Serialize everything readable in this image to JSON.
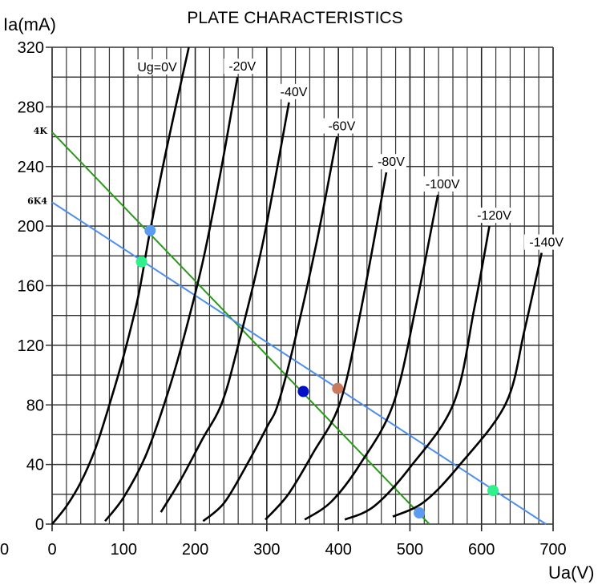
{
  "chart_data": {
    "type": "line",
    "title": "PLATE CHARACTERISTICS",
    "xlabel": "Ua(V)",
    "ylabel": "Ia(mA)",
    "xlim": [
      0,
      700
    ],
    "ylim": [
      0,
      320
    ],
    "x_ticks": [
      0,
      100,
      200,
      300,
      400,
      500,
      600,
      700
    ],
    "y_ticks": [
      0,
      40,
      80,
      120,
      160,
      200,
      240,
      280,
      320
    ],
    "x_minor_step": 20,
    "y_minor_step": 20,
    "grid": true,
    "extra_labels": [
      {
        "text": "0",
        "position": "bottom-left-outside"
      }
    ],
    "series": [
      {
        "name": "Ug=0V",
        "label": "Ug=0V",
        "color": "#000000",
        "points": [
          [
            0,
            0
          ],
          [
            20,
            12
          ],
          [
            40,
            28
          ],
          [
            60,
            50
          ],
          [
            80,
            80
          ],
          [
            100,
            113
          ],
          [
            120,
            152
          ],
          [
            137,
            197
          ],
          [
            160,
            252
          ],
          [
            191,
            320
          ]
        ]
      },
      {
        "name": "-20V",
        "label": "-20V",
        "color": "#000000",
        "points": [
          [
            74,
            2
          ],
          [
            100,
            18
          ],
          [
            130,
            45
          ],
          [
            157,
            81
          ],
          [
            180,
            118
          ],
          [
            210,
            175
          ],
          [
            235,
            235
          ],
          [
            259,
            300
          ]
        ]
      },
      {
        "name": "-40V",
        "label": "-40V",
        "color": "#000000",
        "points": [
          [
            152,
            8
          ],
          [
            180,
            30
          ],
          [
            210,
            57
          ],
          [
            237,
            81
          ],
          [
            260,
            120
          ],
          [
            295,
            190
          ],
          [
            331,
            283
          ]
        ]
      },
      {
        "name": "-60V",
        "label": "-60V",
        "color": "#000000",
        "points": [
          [
            211,
            2
          ],
          [
            240,
            14
          ],
          [
            270,
            38
          ],
          [
            300,
            65
          ],
          [
            316,
            81
          ],
          [
            340,
            125
          ],
          [
            370,
            190
          ],
          [
            398,
            260
          ]
        ]
      },
      {
        "name": "-80V",
        "label": "-80V",
        "color": "#000000",
        "points": [
          [
            298,
            3
          ],
          [
            330,
            20
          ],
          [
            365,
            48
          ],
          [
            402,
            81
          ],
          [
            430,
            140
          ],
          [
            467,
            236
          ]
        ]
      },
      {
        "name": "-100V",
        "label": "-100V",
        "color": "#000000",
        "points": [
          [
            353,
            3
          ],
          [
            390,
            15
          ],
          [
            430,
            40
          ],
          [
            477,
            81
          ],
          [
            510,
            150
          ],
          [
            539,
            221
          ]
        ]
      },
      {
        "name": "-120V",
        "label": "-120V",
        "color": "#000000",
        "points": [
          [
            409,
            3
          ],
          [
            450,
            12
          ],
          [
            500,
            38
          ],
          [
            561,
            81
          ],
          [
            590,
            145
          ],
          [
            611,
            200
          ]
        ]
      },
      {
        "name": "-140V",
        "label": "-140V",
        "color": "#000000",
        "points": [
          [
            476,
            5
          ],
          [
            520,
            15
          ],
          [
            570,
            40
          ],
          [
            634,
            81
          ],
          [
            660,
            130
          ],
          [
            684,
            182
          ]
        ]
      }
    ],
    "load_lines": [
      {
        "name": "4K",
        "label": "4K",
        "color": "#2a9a1a",
        "from": [
          0,
          263
        ],
        "to": [
          527,
          0
        ]
      },
      {
        "name": "6K4",
        "label": "6K4",
        "color": "#4d8ef0",
        "from": [
          0,
          216
        ],
        "to": [
          690,
          0
        ]
      }
    ],
    "markers": [
      {
        "name": "load-4k-ug0",
        "x": 137,
        "y": 197,
        "color": "#5b9cf0"
      },
      {
        "name": "load-6k4-ug0",
        "x": 125,
        "y": 176,
        "color": "#2ff08a"
      },
      {
        "name": "operating-point-4k",
        "x": 351,
        "y": 89,
        "color": "#0010c8"
      },
      {
        "name": "operating-point-6k4",
        "x": 399,
        "y": 91,
        "color": "#c87a5e"
      },
      {
        "name": "load-4k-cutoff",
        "x": 513,
        "y": 7.5,
        "color": "#5b9cf0"
      },
      {
        "name": "load-6k4-cutoff",
        "x": 616,
        "y": 22.5,
        "color": "#2ff08a"
      }
    ]
  }
}
